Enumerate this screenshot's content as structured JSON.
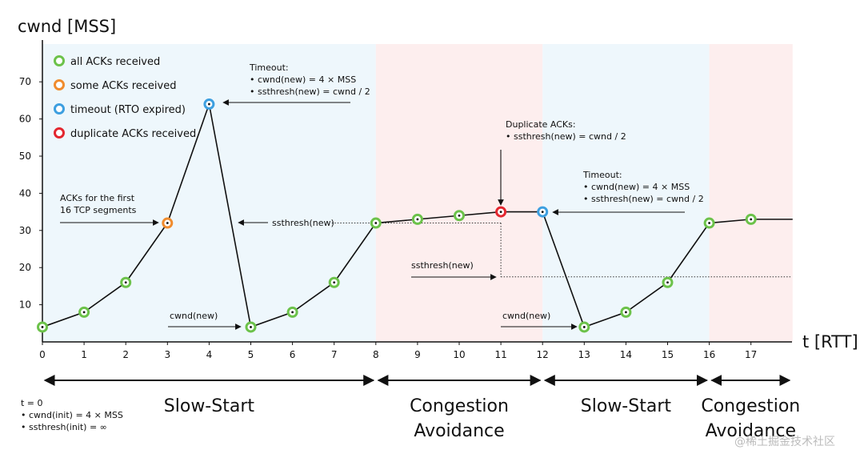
{
  "chart_data": {
    "type": "line",
    "ylabel": "cwnd [MSS]",
    "xlabel": "t [RTT]",
    "xlim": [
      0,
      18
    ],
    "ylim": [
      0,
      75
    ],
    "x_ticks": [
      "0",
      "1",
      "2",
      "3",
      "4",
      "5",
      "6",
      "7",
      "8",
      "9",
      "10",
      "11",
      "12",
      "13",
      "14",
      "15",
      "16",
      "17"
    ],
    "y_ticks": [
      "10",
      "20",
      "30",
      "40",
      "50",
      "60",
      "70"
    ],
    "series": [
      {
        "x": [
          0,
          1,
          2,
          3,
          4,
          5,
          6,
          7,
          8,
          9,
          10,
          11,
          12,
          13,
          14,
          15,
          16,
          17,
          18
        ],
        "y": [
          4,
          8,
          16,
          32,
          64,
          4,
          8,
          16,
          32,
          33,
          34,
          35,
          35,
          4,
          8,
          16,
          32,
          33,
          33
        ],
        "status": [
          "all",
          "all",
          "all",
          "some",
          "timeout",
          "all",
          "all",
          "all",
          "all",
          "all",
          "all",
          "dup",
          "timeout",
          "all",
          "all",
          "all",
          "all",
          "all",
          "none"
        ]
      }
    ],
    "legend": [
      {
        "key": "all",
        "label": "all ACKs received",
        "color": "#6cc24a"
      },
      {
        "key": "some",
        "label": "some ACKs received",
        "color": "#f08c2e"
      },
      {
        "key": "timeout",
        "label": "timeout (RTO expired)",
        "color": "#3d9fe0"
      },
      {
        "key": "dup",
        "label": "duplicate ACKs received",
        "color": "#e3262f"
      }
    ],
    "legend_position": "top-left",
    "grid": false,
    "phases": [
      {
        "label": "Slow-Start",
        "start": 0,
        "end": 8,
        "color": "#eef7fc"
      },
      {
        "label": "Congestion Avoidance",
        "start": 8,
        "end": 12,
        "color": "#fdeeee"
      },
      {
        "label": "Slow-Start",
        "start": 12,
        "end": 16,
        "color": "#eef7fc"
      },
      {
        "label": "Congestion Avoidance",
        "start": 16,
        "end": 18,
        "color": "#fdeeee"
      }
    ],
    "ssthresh_lines": [
      {
        "from": 8,
        "to": 11,
        "y": 32
      },
      {
        "from": 11,
        "to": 18,
        "y": 17.5
      }
    ],
    "annotations": {
      "timeout1": [
        "Timeout:",
        "• cwnd(new) = 4 × MSS",
        "• ssthresh(new) = cwnd / 2"
      ],
      "timeout2": [
        "Timeout:",
        "• cwnd(new) = 4 × MSS",
        "• ssthresh(new) = cwnd / 2"
      ],
      "dup": [
        "Duplicate ACKs:",
        "• ssthresh(new) = cwnd / 2"
      ],
      "acks16": [
        "ACKs for the first",
        "16 TCP segments"
      ],
      "ssthresh_label": "ssthresh(new)",
      "cwnd_label": "cwnd(new)",
      "init": [
        "t = 0",
        "• cwnd(init) = 4 × MSS",
        "• ssthresh(init) = ∞"
      ]
    },
    "watermark": "@稀土掘金技术社区"
  }
}
